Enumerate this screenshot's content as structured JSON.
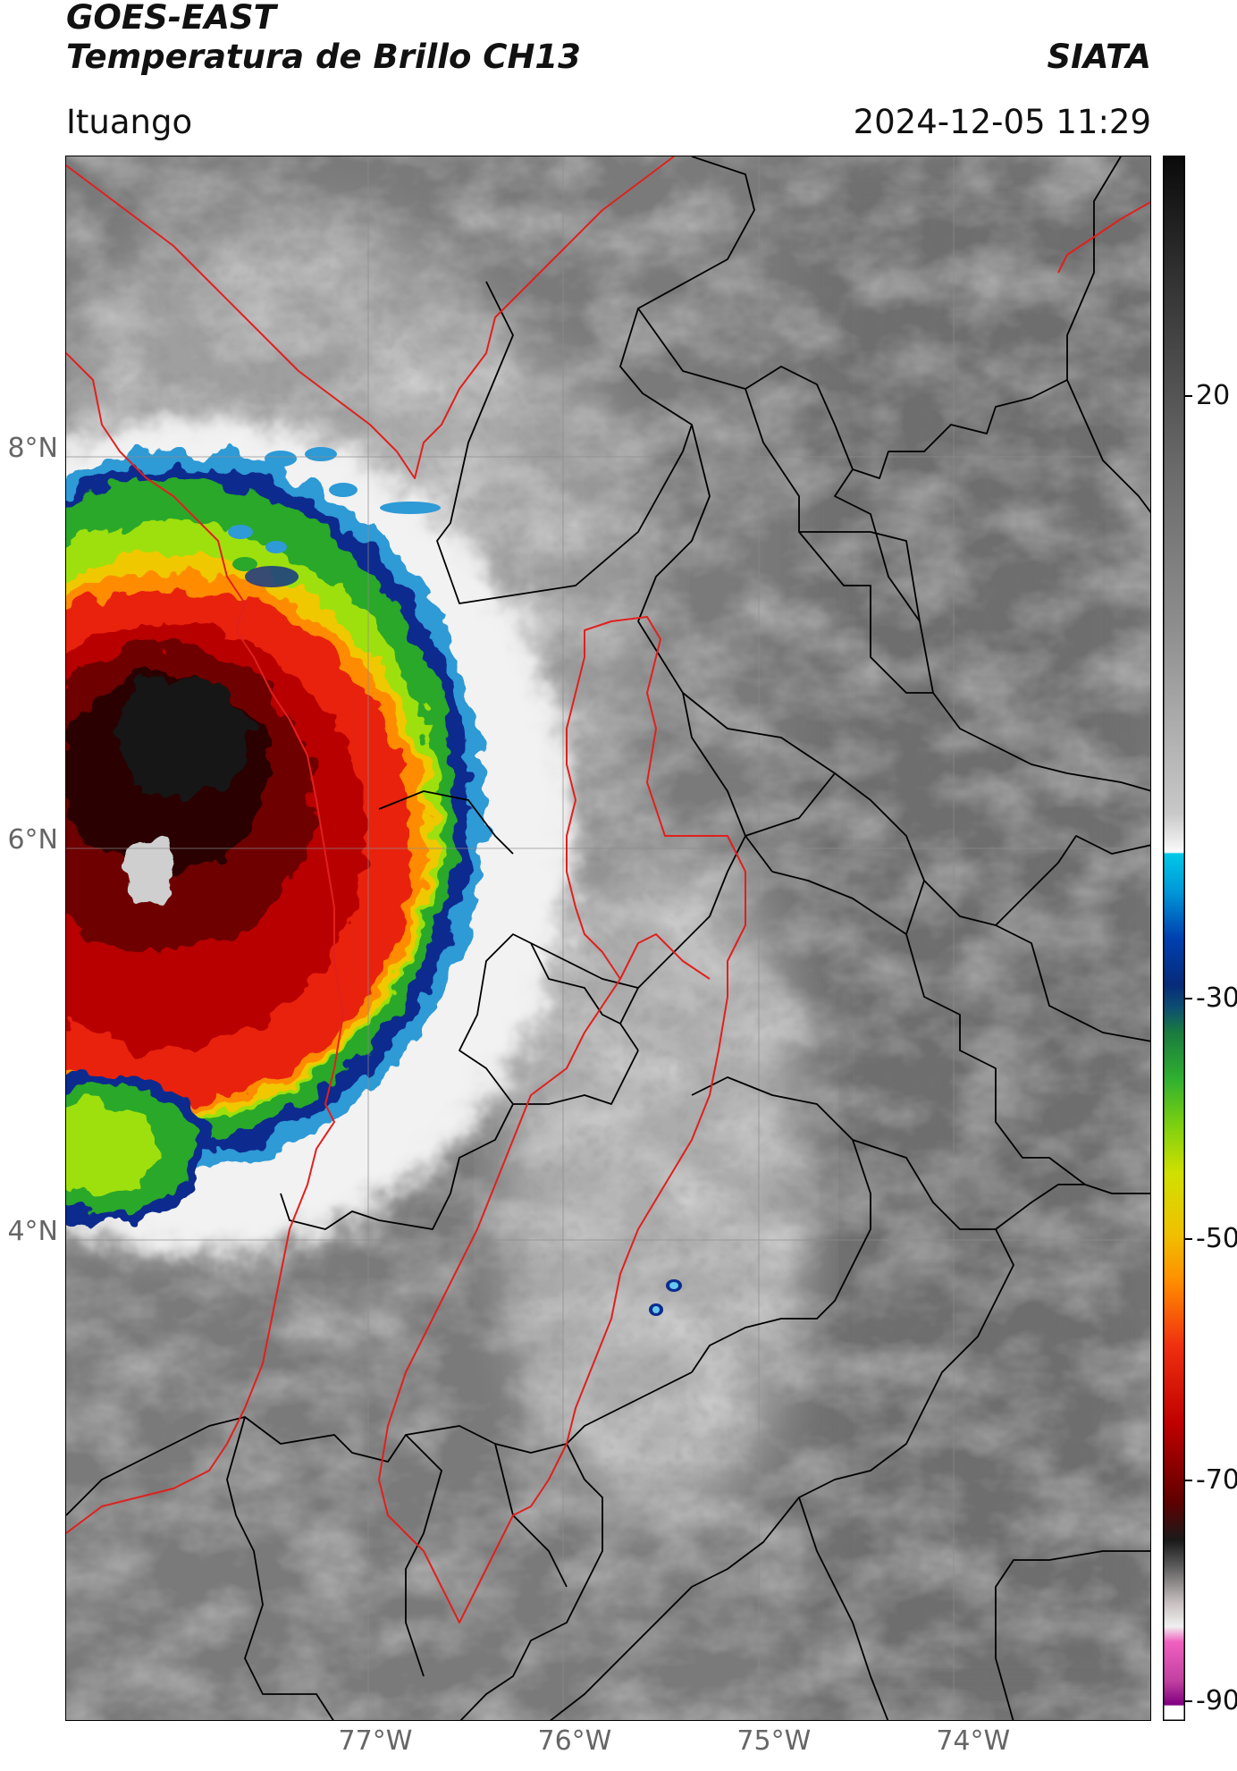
{
  "header": {
    "satellite": "GOES-EAST",
    "product": "Temperatura de Brillo CH13",
    "organization": "SIATA",
    "location": "Ituango",
    "datetime": "2024-12-05 11:29"
  },
  "map": {
    "lon_range": [
      -78.55,
      -73.1
    ],
    "lat_range": [
      1.5,
      9.5
    ],
    "lat_ticks": [
      {
        "value": 8,
        "label": "8°N"
      },
      {
        "value": 6,
        "label": "6°N"
      },
      {
        "value": 4,
        "label": "4°N"
      }
    ],
    "lon_ticks": [
      {
        "value": -77,
        "label": "77°W"
      },
      {
        "value": -76,
        "label": "76°W"
      },
      {
        "value": -75,
        "label": "75°W"
      },
      {
        "value": -74,
        "label": "74°W"
      }
    ],
    "storm": {
      "center_lon": -77.7,
      "center_lat": 5.6,
      "min_temp": -85
    },
    "coastline_color": "#e0201e",
    "boundary_color": "#000000"
  },
  "colorbar": {
    "range": [
      -90,
      40
    ],
    "ticks": [
      {
        "value": 20,
        "label": "20"
      },
      {
        "value": -30,
        "label": "-30"
      },
      {
        "value": -50,
        "label": "-50"
      },
      {
        "value": -70,
        "label": "-70"
      },
      {
        "value": -90,
        "label": "-90"
      }
    ]
  }
}
